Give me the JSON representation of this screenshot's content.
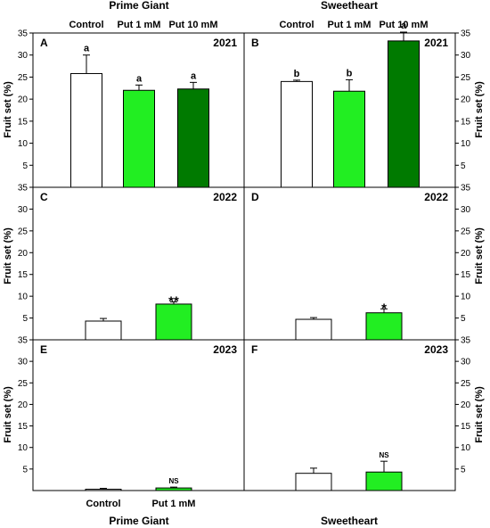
{
  "colors": {
    "control": "#ffffff",
    "put1": "#22ee22",
    "put10": "#007a00",
    "stroke": "#000000"
  },
  "groups": {
    "left": "Prime Giant",
    "right": "Sweetheart"
  },
  "categories_top": [
    "Control",
    "Put 1 mM",
    "Put 10 mM"
  ],
  "categories_bottom": [
    "Control",
    "Put 1 mM"
  ],
  "ylabel": "Fruit set (%)",
  "chart_data": [
    {
      "panel": "A",
      "year": "2021",
      "type": "bar",
      "cultivar": "Prime Giant",
      "categories": [
        "Control",
        "Put 1 mM",
        "Put 10 mM"
      ],
      "values": [
        25.8,
        22.0,
        22.3
      ],
      "errors": [
        4.2,
        1.2,
        1.5
      ],
      "labels": [
        "a",
        "a",
        "a"
      ],
      "ylim": [
        0,
        35
      ],
      "yticks": [
        5,
        10,
        15,
        20,
        25,
        30,
        35
      ],
      "fills": [
        "control",
        "put1",
        "put10"
      ]
    },
    {
      "panel": "B",
      "year": "2021",
      "type": "bar",
      "cultivar": "Sweetheart",
      "categories": [
        "Control",
        "Put 1 mM",
        "Put 10 mM"
      ],
      "values": [
        24.0,
        21.8,
        33.2
      ],
      "errors": [
        0.3,
        2.6,
        2.0
      ],
      "labels": [
        "b",
        "b",
        "a"
      ],
      "ylim": [
        0,
        35
      ],
      "yticks": [
        5,
        10,
        15,
        20,
        25,
        30,
        35
      ],
      "fills": [
        "control",
        "put1",
        "put10"
      ]
    },
    {
      "panel": "C",
      "year": "2022",
      "type": "bar",
      "cultivar": "Prime Giant",
      "categories": [
        "Control",
        "Put 1 mM"
      ],
      "values": [
        4.3,
        8.2
      ],
      "errors": [
        0.6,
        0.5
      ],
      "labels": [
        "",
        "**"
      ],
      "ylim": [
        0,
        35
      ],
      "yticks": [
        5,
        10,
        15,
        20,
        25,
        30,
        35
      ],
      "fills": [
        "control",
        "put1"
      ]
    },
    {
      "panel": "D",
      "year": "2022",
      "type": "bar",
      "cultivar": "Sweetheart",
      "categories": [
        "Control",
        "Put 1 mM"
      ],
      "values": [
        4.7,
        6.2
      ],
      "errors": [
        0.4,
        0.9
      ],
      "labels": [
        "",
        "*"
      ],
      "ylim": [
        0,
        35
      ],
      "yticks": [
        5,
        10,
        15,
        20,
        25,
        30,
        35
      ],
      "fills": [
        "control",
        "put1"
      ]
    },
    {
      "panel": "E",
      "year": "2023",
      "type": "bar",
      "cultivar": "Prime Giant",
      "categories": [
        "Control",
        "Put 1 mM"
      ],
      "values": [
        0.3,
        0.6
      ],
      "errors": [
        0.2,
        0.2
      ],
      "labels": [
        "",
        "NS"
      ],
      "ylim": [
        0,
        35
      ],
      "yticks": [
        5,
        10,
        15,
        20,
        25,
        30,
        35
      ],
      "fills": [
        "control",
        "put1"
      ]
    },
    {
      "panel": "F",
      "year": "2023",
      "type": "bar",
      "cultivar": "Sweetheart",
      "categories": [
        "Control",
        "Put 1 mM"
      ],
      "values": [
        4.0,
        4.3
      ],
      "errors": [
        1.2,
        2.5
      ],
      "labels": [
        "",
        "NS"
      ],
      "ylim": [
        0,
        35
      ],
      "yticks": [
        5,
        10,
        15,
        20,
        25,
        30,
        35
      ],
      "fills": [
        "control",
        "put1"
      ]
    }
  ]
}
